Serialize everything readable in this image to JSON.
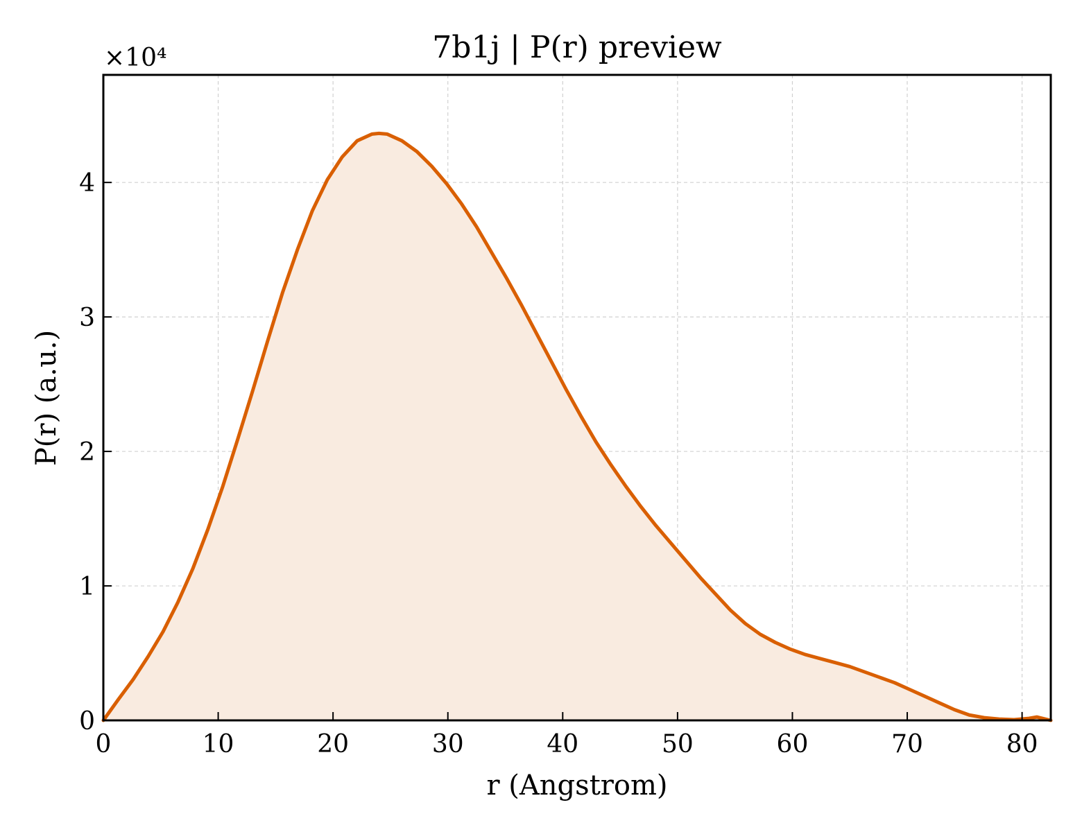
{
  "chart_data": {
    "type": "area",
    "title": "7b1j | P(r) preview",
    "xlabel": "r (Angstrom)",
    "ylabel": "P(r) (a.u.)",
    "y_exponent_label": "×10⁴",
    "y_scale_factor": 10000,
    "xlim": [
      0,
      82.5
    ],
    "ylim": [
      0,
      48000
    ],
    "xticks": [
      0,
      10,
      20,
      30,
      40,
      50,
      60,
      70,
      80
    ],
    "xtick_labels": [
      "0",
      "10",
      "20",
      "30",
      "40",
      "50",
      "60",
      "70",
      "80"
    ],
    "yticks": [
      0,
      10000,
      20000,
      30000,
      40000
    ],
    "ytick_labels": [
      "0",
      "1",
      "2",
      "3",
      "4"
    ],
    "grid": true,
    "line_color": "#d95f02",
    "fill_color": "#f9ebe0",
    "series": [
      {
        "x": [
          0,
          1.3,
          2.6,
          3.9,
          5.2,
          6.5,
          7.8,
          9.1,
          10.4,
          11.7,
          13.0,
          14.3,
          15.6,
          16.9,
          18.2,
          19.5,
          20.8,
          22.1,
          23.4,
          24.0,
          24.7,
          26.0,
          27.3,
          28.6,
          29.9,
          31.2,
          32.5,
          33.8,
          35.1,
          36.4,
          37.7,
          39.0,
          40.3,
          41.6,
          42.9,
          44.2,
          45.5,
          46.8,
          48.1,
          49.4,
          50.7,
          52.0,
          53.3,
          54.6,
          55.9,
          57.2,
          58.5,
          59.8,
          61.1,
          62.4,
          63.7,
          65.0,
          66.3,
          67.6,
          68.9,
          70.2,
          71.5,
          72.8,
          74.1,
          75.4,
          76.7,
          78.0,
          79.3,
          80.6,
          81.3,
          82.5
        ],
        "y": [
          0,
          1550,
          3050,
          4750,
          6600,
          8800,
          11300,
          14200,
          17400,
          20900,
          24500,
          28200,
          31800,
          35000,
          37900,
          40200,
          41900,
          43100,
          43600,
          43650,
          43600,
          43100,
          42300,
          41200,
          39900,
          38400,
          36700,
          34800,
          32900,
          30900,
          28800,
          26700,
          24600,
          22600,
          20700,
          19000,
          17400,
          15900,
          14500,
          13200,
          11900,
          10600,
          9400,
          8200,
          7200,
          6400,
          5800,
          5300,
          4900,
          4600,
          4300,
          4000,
          3600,
          3200,
          2800,
          2300,
          1800,
          1300,
          800,
          400,
          200,
          100,
          50,
          150,
          250,
          0
        ]
      }
    ]
  }
}
